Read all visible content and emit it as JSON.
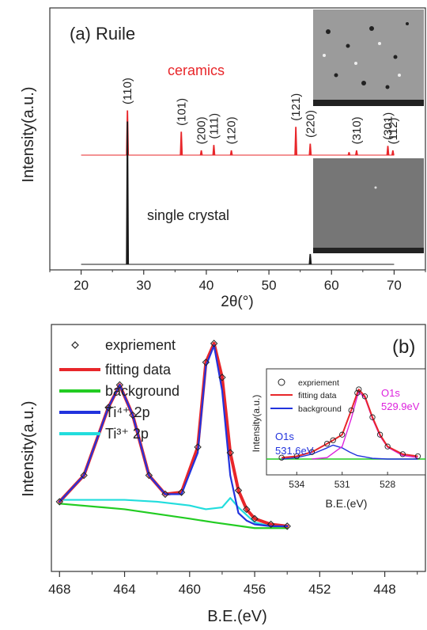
{
  "chart_data": [
    {
      "type": "line",
      "panel_label": "(a)",
      "title": "Ruile",
      "xlabel": "2θ(°)",
      "ylabel": "Intensity(a.u.)",
      "xlim": [
        15,
        75
      ],
      "x_ticks": [
        20,
        30,
        40,
        50,
        60,
        70
      ],
      "x_tick_labels": [
        "20",
        "30",
        "40",
        "50",
        "60",
        "70"
      ],
      "series": [
        {
          "name": "ceramics",
          "color": "#e8262a",
          "baseline": 0,
          "peaks": [
            {
              "x": 27.4,
              "height": 1.0,
              "label": "(110)"
            },
            {
              "x": 36.0,
              "height": 0.52,
              "label": "(101)"
            },
            {
              "x": 39.2,
              "height": 0.1,
              "label": "(200)"
            },
            {
              "x": 41.2,
              "height": 0.22,
              "label": "(111)"
            },
            {
              "x": 44.0,
              "height": 0.1,
              "label": "(120)"
            },
            {
              "x": 54.3,
              "height": 0.63,
              "label": "(121)"
            },
            {
              "x": 56.6,
              "height": 0.25,
              "label": "(220)"
            },
            {
              "x": 62.8,
              "height": 0.06,
              "label": ""
            },
            {
              "x": 64.0,
              "height": 0.1,
              "label": "(310)"
            },
            {
              "x": 69.0,
              "height": 0.2,
              "label": "(301)"
            },
            {
              "x": 69.8,
              "height": 0.1,
              "label": "(112)"
            }
          ]
        },
        {
          "name": "single crystal",
          "color": "#1a1a1a",
          "baseline": 0,
          "peaks": [
            {
              "x": 27.4,
              "height": 1.0,
              "label": ""
            },
            {
              "x": 56.6,
              "height": 0.07,
              "label": ""
            }
          ]
        }
      ],
      "grid": false
    },
    {
      "type": "line",
      "panel_label": "(b)",
      "xlabel": "B.E.(eV)",
      "ylabel": "Intensity(a.u.)",
      "xlim": [
        468.5,
        445.5
      ],
      "x_ticks": [
        468,
        464,
        460,
        456,
        452,
        448
      ],
      "x_tick_labels": [
        "468",
        "464",
        "460",
        "456",
        "452",
        "448"
      ],
      "legend_position": "top-left",
      "legend": [
        "expriement",
        "fitting data",
        "background",
        "Ti⁴⁺ 2p",
        "Ti³⁺ 2p"
      ],
      "series": [
        {
          "name": "expriement",
          "color": "#222222",
          "marker": "open-diamond",
          "x": [
            468,
            466.5,
            465,
            464.3,
            463.5,
            462.5,
            461.5,
            460.5,
            459.5,
            459,
            458.5,
            458,
            457.5,
            457,
            456.5,
            456,
            455,
            454
          ],
          "y": [
            0.16,
            0.3,
            0.66,
            0.78,
            0.62,
            0.3,
            0.2,
            0.21,
            0.45,
            0.9,
            1.0,
            0.82,
            0.42,
            0.22,
            0.12,
            0.07,
            0.04,
            0.03
          ]
        },
        {
          "name": "fitting data",
          "color": "#e8262a",
          "x": [
            468,
            466.5,
            465,
            464.3,
            463.5,
            462.5,
            461.5,
            460.5,
            459.5,
            459,
            458.5,
            458,
            457.5,
            457,
            456.5,
            456,
            455,
            454
          ],
          "y": [
            0.16,
            0.3,
            0.66,
            0.78,
            0.62,
            0.3,
            0.2,
            0.21,
            0.45,
            0.9,
            1.0,
            0.82,
            0.42,
            0.22,
            0.12,
            0.07,
            0.04,
            0.03
          ]
        },
        {
          "name": "background",
          "color": "#22cc22",
          "x": [
            468,
            464,
            460,
            458.5,
            456,
            454
          ],
          "y": [
            0.15,
            0.12,
            0.07,
            0.05,
            0.02,
            0.02
          ]
        },
        {
          "name": "Ti⁴⁺ 2p",
          "color": "#2233dd",
          "x": [
            468,
            466.5,
            465,
            464.3,
            463.5,
            462.5,
            461.5,
            460.5,
            459.5,
            459,
            458.5,
            458,
            457.5,
            457,
            456.5,
            456,
            455,
            454
          ],
          "y": [
            0.16,
            0.3,
            0.66,
            0.78,
            0.62,
            0.3,
            0.2,
            0.2,
            0.42,
            0.88,
            0.99,
            0.75,
            0.3,
            0.1,
            0.06,
            0.04,
            0.03,
            0.03
          ]
        },
        {
          "name": "Ti³⁺ 2p",
          "color": "#22dddd",
          "x": [
            468,
            466,
            464,
            462,
            460,
            459,
            458,
            457.5,
            457,
            456,
            455,
            454
          ],
          "y": [
            0.17,
            0.17,
            0.17,
            0.16,
            0.14,
            0.12,
            0.13,
            0.18,
            0.13,
            0.05,
            0.03,
            0.03
          ]
        }
      ],
      "inset": {
        "type": "line",
        "xlabel": "B.E.(eV)",
        "ylabel": "Intensity(a.u.)",
        "xlim": [
          536,
          525.5
        ],
        "x_ticks": [
          534,
          531,
          528
        ],
        "x_tick_labels": [
          "534",
          "531",
          "528"
        ],
        "legend": [
          "expriement",
          "fitting data",
          "background"
        ],
        "annotations": [
          {
            "text_lines": [
              "O1s",
              "529.9eV"
            ],
            "color": "#dd22dd"
          },
          {
            "text_lines": [
              "O1s",
              "531.6eV"
            ],
            "color": "#2233dd"
          }
        ],
        "series": [
          {
            "name": "expriement",
            "color": "#222222",
            "marker": "open-circle",
            "x": [
              535,
              534,
              533,
              532,
              531.6,
              531,
              530.4,
              530,
              529.9,
              529.5,
              529,
              528.5,
              528,
              527,
              526
            ],
            "y": [
              0.02,
              0.04,
              0.1,
              0.22,
              0.27,
              0.35,
              0.7,
              0.95,
              1.0,
              0.9,
              0.6,
              0.35,
              0.18,
              0.07,
              0.04
            ]
          },
          {
            "name": "fitting data",
            "color": "#e8262a",
            "x": [
              535,
              534,
              533,
              532,
              531.6,
              531,
              530.4,
              530,
              529.9,
              529.5,
              529,
              528.5,
              528,
              527,
              526
            ],
            "y": [
              0.02,
              0.04,
              0.1,
              0.22,
              0.27,
              0.35,
              0.7,
              0.95,
              1.0,
              0.9,
              0.6,
              0.35,
              0.18,
              0.07,
              0.04
            ]
          },
          {
            "name": "background",
            "color": "#2233dd",
            "x": [
              535,
              534,
              533,
              532,
              531.6,
              531,
              530.5,
              530,
              529,
              528,
              527,
              526
            ],
            "y": [
              0.0,
              0.02,
              0.07,
              0.16,
              0.2,
              0.16,
              0.1,
              0.05,
              0.01,
              0.0,
              0.0,
              0.0
            ]
          },
          {
            "name": "O1s 529.9eV component",
            "color": "#dd22dd",
            "x": [
              533,
              532,
              531,
              530.4,
              530,
              529.9,
              529.5,
              529,
              528.5,
              528,
              527,
              526
            ],
            "y": [
              0.0,
              0.02,
              0.18,
              0.58,
              0.9,
              0.96,
              0.88,
              0.58,
              0.33,
              0.17,
              0.05,
              0.02
            ]
          },
          {
            "name": "baseline",
            "color": "#22cc22",
            "x": [
              536,
              525.5
            ],
            "y": [
              0.0,
              0.0
            ]
          }
        ]
      }
    }
  ]
}
